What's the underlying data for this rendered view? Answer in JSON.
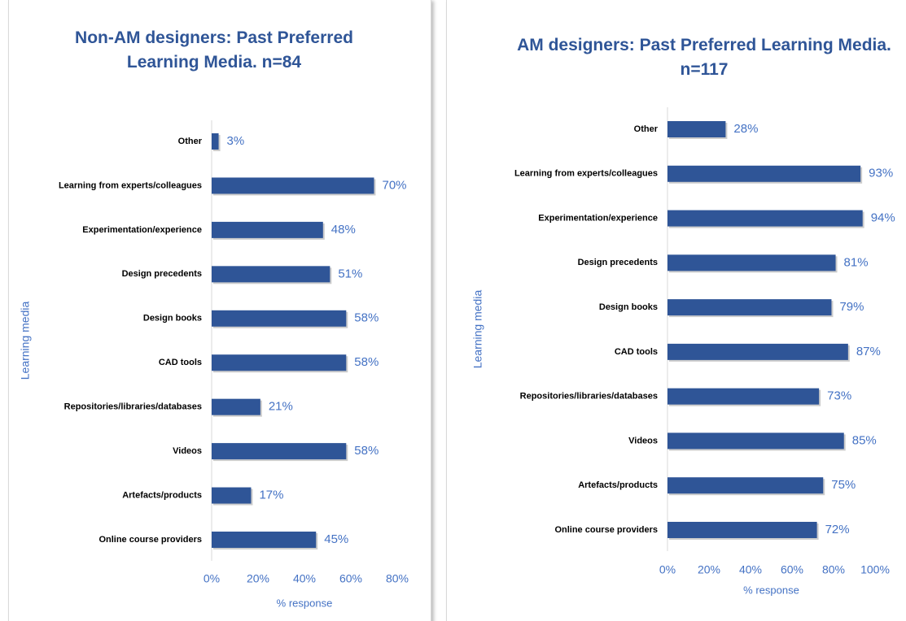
{
  "chart_data": [
    {
      "type": "bar",
      "orientation": "horizontal",
      "title": "Non-AM designers: Past Preferred Learning Media. n=84",
      "xlabel": "% response",
      "ylabel": "Learning media",
      "categories": [
        "Other",
        "Learning from experts/colleagues",
        "Experimentation/experience",
        "Design precedents",
        "Design books",
        "CAD tools",
        "Repositories/libraries/databases",
        "Videos",
        "Artefacts/products",
        "Online course providers"
      ],
      "values": [
        3,
        70,
        48,
        51,
        58,
        58,
        21,
        58,
        17,
        45
      ],
      "value_labels": [
        "3%",
        "70%",
        "48%",
        "51%",
        "58%",
        "58%",
        "21%",
        "58%",
        "17%",
        "45%"
      ],
      "color": "#2f5597",
      "xlim": [
        0,
        80
      ],
      "xticks": [
        {
          "value": 0,
          "label": "0%"
        },
        {
          "value": 20,
          "label": "20%"
        },
        {
          "value": 40,
          "label": "40%"
        },
        {
          "value": 60,
          "label": "60%"
        },
        {
          "value": 80,
          "label": "80%"
        }
      ]
    },
    {
      "type": "bar",
      "orientation": "horizontal",
      "title": "AM designers: Past Preferred Learning Media. n=117",
      "xlabel": "% response",
      "ylabel": "Learning media",
      "categories": [
        "Other",
        "Learning from experts/colleagues",
        "Experimentation/experience",
        "Design precedents",
        "Design books",
        "CAD tools",
        "Repositories/libraries/databases",
        "Videos",
        "Artefacts/products",
        "Online course providers"
      ],
      "values": [
        28,
        93,
        94,
        81,
        79,
        87,
        73,
        85,
        75,
        72
      ],
      "value_labels": [
        "28%",
        "93%",
        "94%",
        "81%",
        "79%",
        "87%",
        "73%",
        "85%",
        "75%",
        "72%"
      ],
      "color": "#2f5597",
      "xlim": [
        0,
        100
      ],
      "xticks": [
        {
          "value": 0,
          "label": "0%"
        },
        {
          "value": 20,
          "label": "20%"
        },
        {
          "value": 40,
          "label": "40%"
        },
        {
          "value": 60,
          "label": "60%"
        },
        {
          "value": 80,
          "label": "80%"
        },
        {
          "value": 100,
          "label": "100%"
        }
      ]
    }
  ]
}
